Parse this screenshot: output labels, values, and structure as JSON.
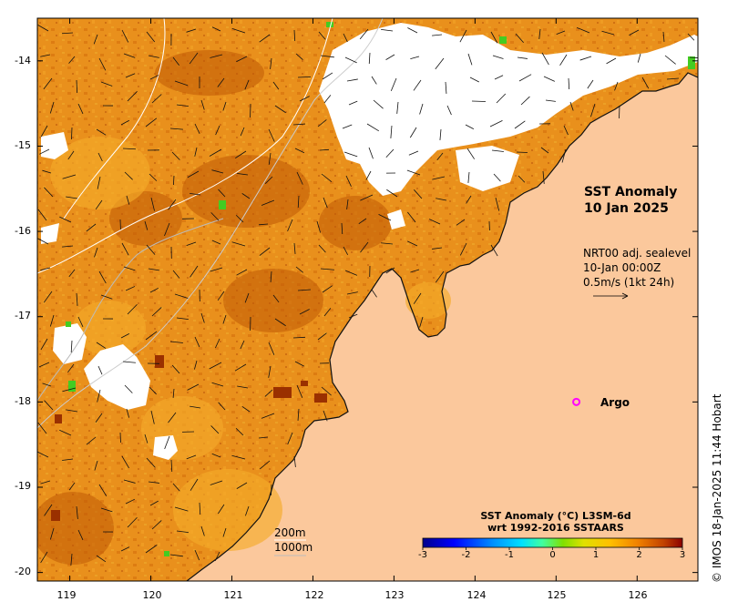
{
  "map": {
    "title": "SST Anomaly",
    "date": "10 Jan 2025",
    "current_info": {
      "product": "NRT00 adj. sealevel",
      "time": "10-Jan 00:00Z",
      "scale": "0.5m/s (1kt 24h)"
    },
    "argo": {
      "label": "Argo",
      "lon": 125.25,
      "lat": -18.0,
      "color": "#ff00ff"
    },
    "depth_legend": {
      "contour_1": "200m",
      "contour_2": "1000m"
    },
    "colorbar": {
      "title_line1": "SST Anomaly (°C) L3SM-6d",
      "title_line2": "wrt 1992-2016 SSTAARS",
      "ticks": [
        "-3",
        "-2",
        "-1",
        "0",
        "1",
        "2",
        "3"
      ],
      "min": -3,
      "max": 3
    },
    "credit": "© IMOS 18-Jan-2025 11:44 Hobart",
    "lon_range": [
      118.6,
      126.75
    ],
    "lat_range": [
      -20.1,
      -13.5
    ],
    "lon_ticks": [
      "119",
      "120",
      "121",
      "122",
      "123",
      "124",
      "125",
      "126"
    ],
    "lat_ticks": [
      "-14",
      "-15",
      "-16",
      "-17",
      "-18",
      "-19",
      "-20"
    ],
    "colors": {
      "land": "#fbc89c",
      "anomaly_warm": "#e9901c",
      "anomaly_hot": "#a93a00",
      "cloud": "#ffffff"
    }
  }
}
